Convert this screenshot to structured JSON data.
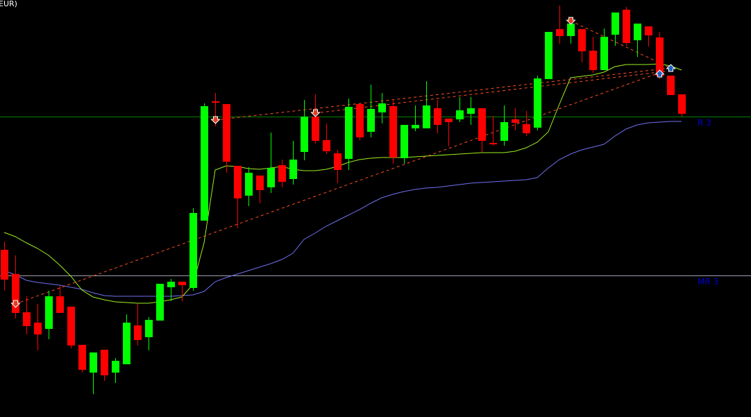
{
  "window": {
    "title": "EUR)"
  },
  "chart_data": {
    "type": "candlestick",
    "title": "",
    "xlabel": "",
    "ylabel": "",
    "ylim": [
      0,
      600
    ],
    "grid": false,
    "colors": {
      "background": "#000000",
      "bull": "#00ff00",
      "bear": "#ff0000",
      "ma_fast": "#a0f020",
      "ma_slow": "#7070f0",
      "trendline": "#ff5020",
      "arrow_down": "#e04020",
      "arrow_up": "#2060c0",
      "level_label": "#0000d0"
    },
    "candles": [
      [
        240,
        252,
        181,
        197
      ],
      [
        205,
        232,
        141,
        149
      ],
      [
        150,
        173,
        118,
        130
      ],
      [
        135,
        162,
        95,
        118
      ],
      [
        126,
        181,
        111,
        173
      ],
      [
        173,
        188,
        149,
        149
      ],
      [
        158,
        158,
        98,
        102
      ],
      [
        103,
        103,
        63,
        67
      ],
      [
        63,
        92,
        32,
        92
      ],
      [
        96,
        96,
        51,
        59
      ],
      [
        63,
        84,
        48,
        80
      ],
      [
        75,
        147,
        75,
        135
      ],
      [
        131,
        162,
        102,
        110
      ],
      [
        114,
        143,
        95,
        139
      ],
      [
        138,
        191,
        138,
        191
      ],
      [
        186,
        198,
        166,
        194
      ],
      [
        194,
        194,
        166,
        189
      ],
      [
        185,
        300,
        181,
        293
      ],
      [
        282,
        451,
        282,
        447
      ],
      [
        454,
        466,
        418,
        452
      ],
      [
        450,
        450,
        351,
        367
      ],
      [
        361,
        361,
        271,
        314
      ],
      [
        318,
        359,
        303,
        351
      ],
      [
        347,
        347,
        307,
        326
      ],
      [
        330,
        409,
        322,
        358
      ],
      [
        362,
        370,
        330,
        338
      ],
      [
        342,
        397,
        334,
        370
      ],
      [
        381,
        456,
        369,
        432
      ],
      [
        432,
        464,
        393,
        397
      ],
      [
        398,
        422,
        378,
        382
      ],
      [
        379,
        384,
        336,
        355
      ],
      [
        371,
        458,
        355,
        446
      ],
      [
        450,
        450,
        398,
        402
      ],
      [
        410,
        478,
        402,
        443
      ],
      [
        438,
        466,
        422,
        451
      ],
      [
        447,
        455,
        364,
        373
      ],
      [
        372,
        420,
        364,
        420
      ],
      [
        415,
        448,
        411,
        420
      ],
      [
        415,
        483,
        415,
        448
      ],
      [
        444,
        456,
        408,
        420
      ],
      [
        429,
        429,
        389,
        424
      ],
      [
        428,
        460,
        424,
        441
      ],
      [
        436,
        460,
        420,
        444
      ],
      [
        444,
        444,
        381,
        397
      ],
      [
        394,
        433,
        390,
        392
      ],
      [
        397,
        448,
        390,
        424
      ],
      [
        428,
        444,
        412,
        423
      ],
      [
        421,
        440,
        404,
        408
      ],
      [
        416,
        491,
        412,
        487
      ],
      [
        486,
        554,
        486,
        554
      ],
      [
        558,
        592,
        537,
        548
      ],
      [
        548,
        566,
        537,
        566
      ],
      [
        558,
        558,
        510,
        526
      ],
      [
        527,
        547,
        495,
        499
      ],
      [
        499,
        559,
        499,
        547
      ],
      [
        550,
        582,
        534,
        582
      ],
      [
        586,
        590,
        534,
        538
      ],
      [
        542,
        566,
        518,
        566
      ],
      [
        562,
        562,
        533,
        549
      ],
      [
        546,
        554,
        486,
        490
      ],
      [
        491,
        491,
        463,
        463
      ],
      [
        464,
        464,
        432,
        436
      ]
    ],
    "ma_fast": [
      265,
      259,
      250,
      242,
      232,
      218,
      202,
      182,
      172,
      168,
      165,
      164,
      163,
      163,
      165,
      168,
      172,
      190,
      250,
      355,
      361,
      360,
      357,
      356,
      358,
      360,
      356,
      354,
      354,
      356,
      360,
      366,
      370,
      372,
      373,
      373,
      373,
      374,
      375,
      376,
      377,
      378,
      379,
      380,
      380,
      380,
      382,
      387,
      395,
      410,
      450,
      488,
      490,
      492,
      496,
      504,
      507,
      507,
      507,
      508,
      505,
      499
    ],
    "ma_slow": [
      210,
      204,
      196,
      193,
      191,
      189,
      186,
      183,
      178,
      174,
      173,
      173,
      173,
      173,
      173,
      173,
      174,
      175,
      180,
      194,
      200,
      205,
      210,
      215,
      220,
      226,
      235,
      255,
      264,
      274,
      282,
      290,
      298,
      307,
      315,
      320,
      324,
      327,
      329,
      330,
      332,
      334,
      336,
      337,
      338,
      339,
      340,
      341,
      344,
      358,
      370,
      378,
      384,
      388,
      392,
      404,
      414,
      420,
      423,
      424,
      425,
      425
    ],
    "levels": [
      {
        "label": "R 3",
        "value": 432,
        "color": "#008000"
      },
      {
        "label": "MR 3",
        "value": 203,
        "color": "#a0a0b0"
      }
    ],
    "signals": [
      {
        "candle": 1,
        "type": "down",
        "value": 162
      },
      {
        "candle": 19,
        "type": "down",
        "value": 427
      },
      {
        "candle": 28,
        "type": "down",
        "value": 437
      },
      {
        "candle": 51,
        "type": "down",
        "value": 570
      },
      {
        "candle": 59,
        "type": "up",
        "value": 494
      },
      {
        "candle": 60,
        "type": "up",
        "value": 502
      }
    ],
    "trendlines": [
      [
        [
          1,
          162
        ],
        [
          59,
          495
        ]
      ],
      [
        [
          19,
          427
        ],
        [
          60,
          502
        ]
      ],
      [
        [
          28,
          437
        ],
        [
          60,
          498
        ]
      ],
      [
        [
          51,
          570
        ],
        [
          60,
          502
        ]
      ]
    ]
  }
}
